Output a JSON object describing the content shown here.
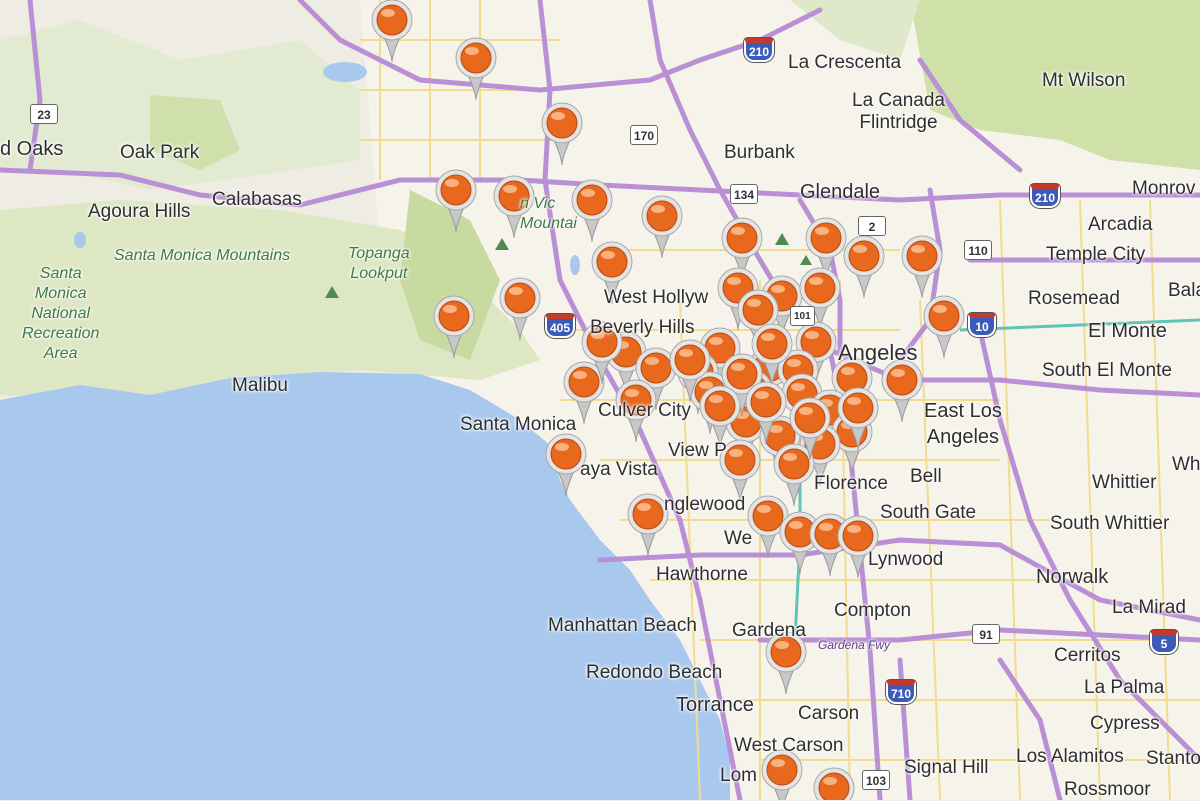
{
  "map": {
    "cities": [
      {
        "name": "La Crescenta",
        "id": "la-crescenta"
      },
      {
        "name": "Mt Wilson",
        "id": "mt-wilson"
      },
      {
        "name": "La Canada\nFlintridge",
        "id": "la-canada-flintridge"
      },
      {
        "name": "Burbank",
        "id": "burbank"
      },
      {
        "name": "Glendale",
        "id": "glendale"
      },
      {
        "name": "d Oaks",
        "id": "thousand-oaks"
      },
      {
        "name": "Oak Park",
        "id": "oak-park"
      },
      {
        "name": "Calabasas",
        "id": "calabasas"
      },
      {
        "name": "Agoura Hills",
        "id": "agoura-hills"
      },
      {
        "name": "Monrov",
        "id": "monrovia"
      },
      {
        "name": "Arcadia",
        "id": "arcadia"
      },
      {
        "name": "Temple City",
        "id": "temple-city"
      },
      {
        "name": "Rosemead",
        "id": "rosemead"
      },
      {
        "name": "El Monte",
        "id": "el-monte"
      },
      {
        "name": "South El Monte",
        "id": "south-el-monte"
      },
      {
        "name": "West Hollyw",
        "id": "west-hollywood"
      },
      {
        "name": "Beverly Hills",
        "id": "beverly-hills"
      },
      {
        "name": "Angeles",
        "id": "los-angeles"
      },
      {
        "name": "East Los\nAngeles",
        "id": "east-los-angeles"
      },
      {
        "name": "Malibu",
        "id": "malibu"
      },
      {
        "name": "Santa Monica",
        "id": "santa-monica"
      },
      {
        "name": "Culver City",
        "id": "culver-city"
      },
      {
        "name": "View P",
        "id": "view-park"
      },
      {
        "name": "aya Vista",
        "id": "playa-vista"
      },
      {
        "name": "Bell",
        "id": "bell"
      },
      {
        "name": "Whittier",
        "id": "whittier"
      },
      {
        "name": "Florence",
        "id": "florence"
      },
      {
        "name": "South Gate",
        "id": "south-gate"
      },
      {
        "name": "South Whittier",
        "id": "south-whittier"
      },
      {
        "name": "nglewood",
        "id": "inglewood"
      },
      {
        "name": "Lynwood",
        "id": "lynwood"
      },
      {
        "name": "We",
        "id": "westmont"
      },
      {
        "name": "Hawthorne",
        "id": "hawthorne"
      },
      {
        "name": "Norwalk",
        "id": "norwalk"
      },
      {
        "name": "Compton",
        "id": "compton"
      },
      {
        "name": "La Mirad",
        "id": "la-mirada"
      },
      {
        "name": "Manhattan Beach",
        "id": "manhattan-beach"
      },
      {
        "name": "Gardena",
        "id": "gardena"
      },
      {
        "name": "Cerritos",
        "id": "cerritos"
      },
      {
        "name": "Redondo Beach",
        "id": "redondo-beach"
      },
      {
        "name": "Torrance",
        "id": "torrance"
      },
      {
        "name": "La Palma",
        "id": "la-palma"
      },
      {
        "name": "Carson",
        "id": "carson"
      },
      {
        "name": "Cypress",
        "id": "cypress"
      },
      {
        "name": "West Carson",
        "id": "west-carson"
      },
      {
        "name": "Los Alamitos",
        "id": "los-alamitos"
      },
      {
        "name": "Stanto",
        "id": "stanton"
      },
      {
        "name": "Lom",
        "id": "lomita"
      },
      {
        "name": "Signal Hill",
        "id": "signal-hill"
      },
      {
        "name": "Rossmoor",
        "id": "rossmoor"
      },
      {
        "name": "Bala",
        "id": "baldwin-park"
      },
      {
        "name": "Whi",
        "id": "whittier-2"
      }
    ],
    "park_labels": [
      {
        "name": "Santa Monica Mountains",
        "id": "santa-monica-mountains"
      },
      {
        "name": "Santa\nMonica\nNational\nRecreation\nArea",
        "id": "smm-nra"
      },
      {
        "name": "Topanga\nLookput",
        "id": "topanga-lookout"
      },
      {
        "name": "n Vic\nMountai",
        "id": "verdugo-mountains"
      },
      {
        "name": "Gardena Fwy",
        "id": "gardena-fwy"
      }
    ],
    "shields": [
      {
        "text": "210",
        "kind": "interstate",
        "id": "i210-west"
      },
      {
        "text": "210",
        "kind": "interstate",
        "id": "i210-east"
      },
      {
        "text": "170",
        "kind": "state",
        "id": "sr170"
      },
      {
        "text": "134",
        "kind": "state",
        "id": "sr134"
      },
      {
        "text": "2",
        "kind": "state",
        "id": "sr2"
      },
      {
        "text": "110",
        "kind": "state",
        "id": "sr110"
      },
      {
        "text": "23",
        "kind": "state",
        "id": "sr23"
      },
      {
        "text": "405",
        "kind": "interstate",
        "id": "i405"
      },
      {
        "text": "10",
        "kind": "interstate",
        "id": "i10"
      },
      {
        "text": "91",
        "kind": "state",
        "id": "sr91"
      },
      {
        "text": "5",
        "kind": "interstate",
        "id": "i5"
      },
      {
        "text": "710",
        "kind": "interstate",
        "id": "i710"
      },
      {
        "text": "103",
        "kind": "state",
        "id": "sr103"
      },
      {
        "text": "101",
        "kind": "state",
        "id": "us101"
      }
    ],
    "marker_count": 57,
    "colors": {
      "water": "#a9c8ee",
      "land": "#efece4",
      "park": "#d4e3b4",
      "highway": "#b98fd6",
      "urban": "#f6f3ea",
      "marker": "#e8681e",
      "marker_stem": "#c8c8c8"
    }
  }
}
